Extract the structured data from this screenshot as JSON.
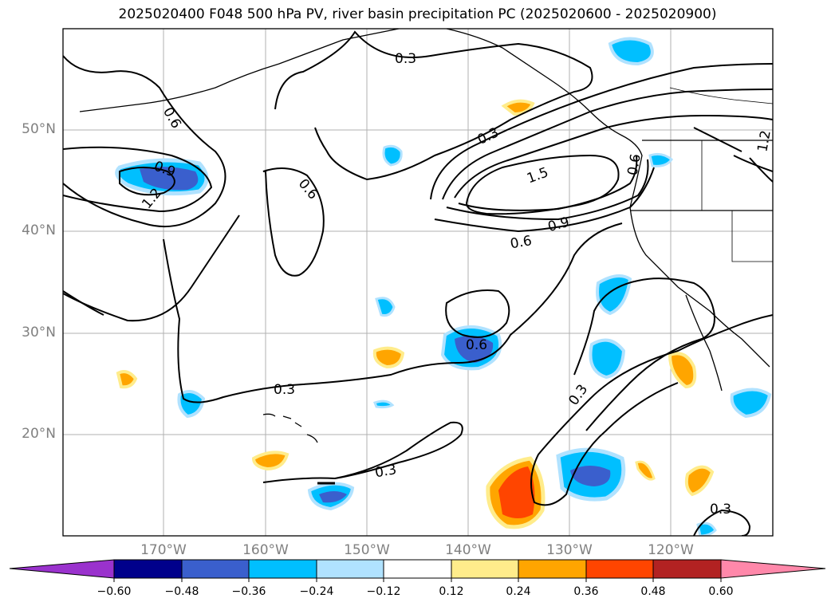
{
  "title": "2025020400 F048 500 hPa PV, river basin precipitation PC (2025020600 - 2025020900)",
  "lat_labels": [
    "50°N",
    "40°N",
    "30°N",
    "20°N"
  ],
  "lon_labels": [
    "170°W",
    "160°W",
    "150°W",
    "140°W",
    "130°W",
    "120°W"
  ],
  "contour_labels": [
    "0.3",
    "0.6",
    "0.9",
    "1.2",
    "0.3",
    "0.6",
    "0.9",
    "1.5",
    "1.2",
    "0.6",
    "0.6",
    "0.3",
    "0.3",
    "0.3",
    "0.3",
    "0.6",
    "0.3"
  ],
  "colorbar": {
    "ticks": [
      "−0.60",
      "−0.48",
      "−0.36",
      "−0.24",
      "−0.12",
      "0.12",
      "0.24",
      "0.36",
      "0.48",
      "0.60"
    ],
    "colors": [
      "#9a32cd",
      "#00008b",
      "#3a5fcd",
      "#00bfff",
      "#b0e2ff",
      "#ffffff",
      "#ffec8b",
      "#ffa500",
      "#ff4500",
      "#b22222",
      "#ff88aa"
    ]
  }
}
